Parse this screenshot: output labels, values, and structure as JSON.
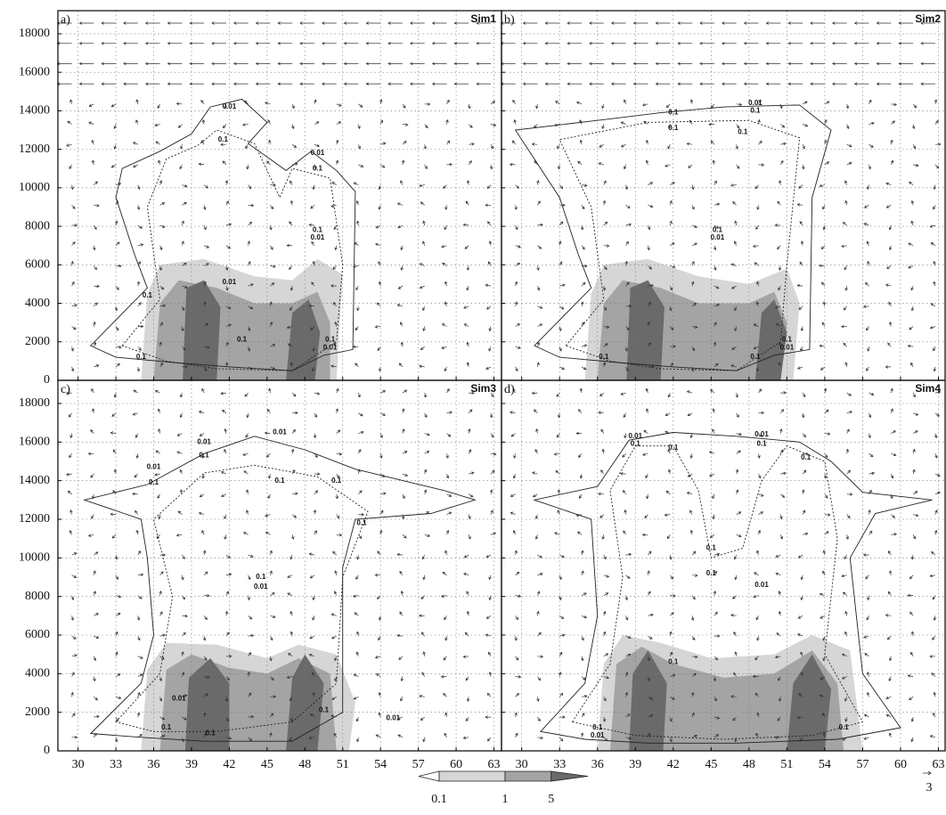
{
  "chart_data": [
    {
      "type": "quiver",
      "panel_label": "a)",
      "title": "Sim1",
      "xlim": [
        28.4,
        63.6
      ],
      "ylim": [
        0,
        19200
      ],
      "xticks": [
        30,
        33,
        36,
        39,
        42,
        45,
        48,
        51,
        54,
        57,
        60,
        63
      ],
      "yticks": [
        0,
        2000,
        4000,
        6000,
        8000,
        10000,
        12000,
        14000,
        16000,
        18000
      ],
      "grid": true,
      "contour_labels": [
        "0.01",
        "0.1",
        "0.01",
        "0.1",
        "0.1",
        "0.01",
        "0.01",
        "0.1",
        "0.1",
        "0.1",
        "0.01",
        "0.1"
      ]
    },
    {
      "type": "quiver",
      "panel_label": "b)",
      "title": "Sim2",
      "xlim": [
        28.4,
        63.6
      ],
      "ylim": [
        0,
        19200
      ],
      "xticks": [
        30,
        33,
        36,
        39,
        42,
        45,
        48,
        51,
        54,
        57,
        60,
        63
      ],
      "yticks": [
        0,
        2000,
        4000,
        6000,
        8000,
        10000,
        12000,
        14000,
        16000,
        18000
      ],
      "grid": true,
      "contour_labels": [
        "0.01",
        "0.1",
        "0.1",
        "0.1",
        "0.1",
        "0.1",
        "0.01",
        "0.1",
        "0.01",
        "0.1",
        "0.1"
      ]
    },
    {
      "type": "quiver",
      "panel_label": "c)",
      "title": "Sim3",
      "xlim": [
        28.4,
        63.6
      ],
      "ylim": [
        0,
        19200
      ],
      "xticks": [
        30,
        33,
        36,
        39,
        42,
        45,
        48,
        51,
        54,
        57,
        60,
        63
      ],
      "yticks": [
        0,
        2000,
        4000,
        6000,
        8000,
        10000,
        12000,
        14000,
        16000,
        18000
      ],
      "grid": true,
      "contour_labels": [
        "0.01",
        "0.01",
        "0.1",
        "0.01",
        "0.1",
        "0.1",
        "0.1",
        "0.1",
        "0.1",
        "0.01",
        "0.01",
        "0.1",
        "0.1",
        "0.01",
        "0.1"
      ]
    },
    {
      "type": "quiver",
      "panel_label": "d)",
      "title": "Sim4",
      "xlim": [
        28.4,
        63.6
      ],
      "ylim": [
        0,
        19200
      ],
      "xticks": [
        30,
        33,
        36,
        39,
        42,
        45,
        48,
        51,
        54,
        57,
        60,
        63
      ],
      "yticks": [
        0,
        2000,
        4000,
        6000,
        8000,
        10000,
        12000,
        14000,
        16000,
        18000
      ],
      "grid": true,
      "contour_labels": [
        "0.01",
        "0.1",
        "0.1",
        "0.01",
        "0.1",
        "0.1",
        "0.1",
        "0.1",
        "0.01",
        "0.1",
        "0.1",
        "0.01",
        "0.1"
      ]
    }
  ],
  "colorbar": {
    "levels": [
      0.1,
      1,
      5
    ],
    "colors": [
      "#ffffff",
      "#d6d6d6",
      "#a4a4a4",
      "#6a6a6a"
    ]
  },
  "reference_vector": 3
}
